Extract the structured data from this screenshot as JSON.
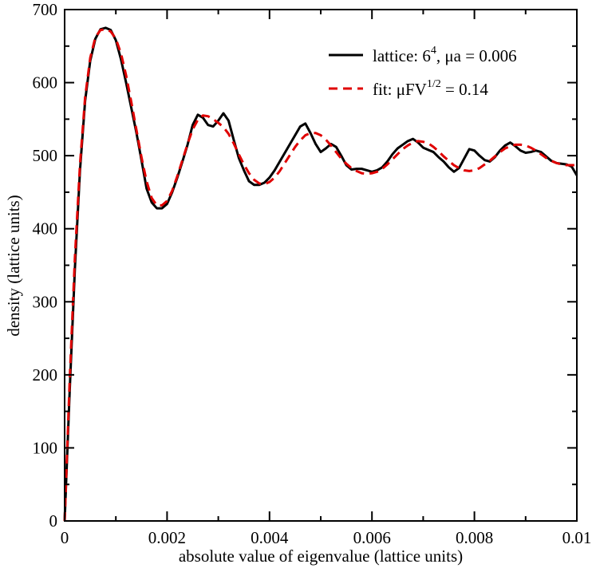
{
  "chart_data": {
    "type": "line",
    "xlabel": "absolute value of eigenvalue (lattice units)",
    "ylabel": "density (lattice units)",
    "xlim": [
      0,
      0.01
    ],
    "ylim": [
      0,
      700
    ],
    "x_ticks": [
      0,
      0.002,
      0.004,
      0.006,
      0.008,
      0.01
    ],
    "x_tick_labels": [
      "0",
      "0.002",
      "0.004",
      "0.006",
      "0.008",
      "0.01"
    ],
    "y_ticks": [
      0,
      100,
      200,
      300,
      400,
      500,
      600,
      700
    ],
    "y_tick_labels": [
      "0",
      "100",
      "200",
      "300",
      "400",
      "500",
      "600",
      "700"
    ],
    "grid": false,
    "legend_position": "top-right",
    "legend": [
      {
        "base": "lattice: 6",
        "sup": "4",
        "tail": ", μa = 0.006"
      },
      {
        "base": "fit: μFV",
        "sup": "1/2",
        "tail": " = 0.14"
      }
    ],
    "series": [
      {
        "color": "#000000",
        "style": "solid",
        "x": [
          0,
          0.0001,
          0.0002,
          0.0003,
          0.0004,
          0.0005,
          0.0006,
          0.0007,
          0.0008,
          0.0009,
          0.001,
          0.0011,
          0.0012,
          0.0013,
          0.0014,
          0.0015,
          0.0016,
          0.0017,
          0.0018,
          0.0019,
          0.002,
          0.0021,
          0.0022,
          0.0023,
          0.0024,
          0.0025,
          0.0026,
          0.0027,
          0.0028,
          0.0029,
          0.003,
          0.0031,
          0.0032,
          0.0033,
          0.0034,
          0.0035,
          0.0036,
          0.0037,
          0.0038,
          0.0039,
          0.004,
          0.0041,
          0.0042,
          0.0043,
          0.0044,
          0.0045,
          0.0046,
          0.0047,
          0.0048,
          0.0049,
          0.005,
          0.0051,
          0.0052,
          0.0053,
          0.0054,
          0.0055,
          0.0056,
          0.0057,
          0.0058,
          0.0059,
          0.006,
          0.0061,
          0.0062,
          0.0063,
          0.0064,
          0.0065,
          0.0066,
          0.0067,
          0.0068,
          0.0069,
          0.007,
          0.0071,
          0.0072,
          0.0073,
          0.0074,
          0.0075,
          0.0076,
          0.0077,
          0.0078,
          0.0079,
          0.008,
          0.0081,
          0.0082,
          0.0083,
          0.0084,
          0.0085,
          0.0086,
          0.0087,
          0.0088,
          0.0089,
          0.009,
          0.0091,
          0.0092,
          0.0093,
          0.0094,
          0.0095,
          0.0096,
          0.0097,
          0.0098,
          0.0099,
          0.01
        ],
        "y": [
          0,
          180,
          345,
          480,
          575,
          630,
          660,
          673,
          675,
          672,
          658,
          632,
          600,
          566,
          532,
          494,
          455,
          436,
          428,
          428,
          434,
          450,
          470,
          492,
          515,
          542,
          556,
          552,
          542,
          540,
          548,
          558,
          548,
          522,
          497,
          480,
          465,
          460,
          460,
          463,
          470,
          480,
          492,
          504,
          516,
          528,
          540,
          544,
          531,
          516,
          505,
          510,
          516,
          512,
          500,
          487,
          481,
          482,
          482,
          480,
          478,
          480,
          484,
          492,
          502,
          510,
          515,
          520,
          523,
          518,
          511,
          508,
          505,
          498,
          492,
          484,
          478,
          483,
          496,
          509,
          507,
          500,
          494,
          492,
          498,
          507,
          514,
          518,
          513,
          507,
          504,
          505,
          507,
          505,
          499,
          493,
          490,
          489,
          488,
          485,
          473
        ]
      },
      {
        "color": "#e00000",
        "style": "dashed",
        "x": [
          0,
          0.0001,
          0.0002,
          0.0003,
          0.0004,
          0.0005,
          0.0006,
          0.0007,
          0.0008,
          0.0009,
          0.001,
          0.0011,
          0.0012,
          0.0013,
          0.0014,
          0.0015,
          0.0016,
          0.0017,
          0.0018,
          0.0019,
          0.002,
          0.0021,
          0.0022,
          0.0023,
          0.0024,
          0.0025,
          0.0026,
          0.0027,
          0.0028,
          0.0029,
          0.003,
          0.0031,
          0.0032,
          0.0033,
          0.0034,
          0.0035,
          0.0036,
          0.0037,
          0.0038,
          0.0039,
          0.004,
          0.0041,
          0.0042,
          0.0043,
          0.0044,
          0.0045,
          0.0046,
          0.0047,
          0.0048,
          0.0049,
          0.005,
          0.0051,
          0.0052,
          0.0053,
          0.0054,
          0.0055,
          0.0056,
          0.0057,
          0.0058,
          0.0059,
          0.006,
          0.0061,
          0.0062,
          0.0063,
          0.0064,
          0.0065,
          0.0066,
          0.0067,
          0.0068,
          0.0069,
          0.007,
          0.0071,
          0.0072,
          0.0073,
          0.0074,
          0.0075,
          0.0076,
          0.0077,
          0.0078,
          0.0079,
          0.008,
          0.0081,
          0.0082,
          0.0083,
          0.0084,
          0.0085,
          0.0086,
          0.0087,
          0.0088,
          0.0089,
          0.009,
          0.0091,
          0.0092,
          0.0093,
          0.0094,
          0.0095,
          0.0096,
          0.0097,
          0.0098,
          0.0099,
          0.01
        ],
        "y": [
          0,
          195,
          360,
          488,
          580,
          634,
          662,
          672,
          673,
          670,
          660,
          640,
          610,
          574,
          536,
          498,
          465,
          442,
          432,
          432,
          438,
          452,
          472,
          494,
          516,
          536,
          549,
          555,
          554,
          550,
          545,
          539,
          530,
          517,
          502,
          488,
          476,
          467,
          462,
          461,
          464,
          470,
          479,
          490,
          501,
          512,
          521,
          528,
          531,
          531,
          528,
          522,
          514,
          505,
          496,
          489,
          483,
          479,
          476,
          475,
          476,
          478,
          482,
          488,
          495,
          502,
          509,
          514,
          518,
          520,
          519,
          517,
          512,
          506,
          499,
          493,
          487,
          483,
          480,
          479,
          480,
          483,
          488,
          493,
          499,
          505,
          510,
          513,
          515,
          515,
          514,
          511,
          507,
          502,
          497,
          493,
          490,
          488,
          487,
          487,
          487
        ]
      }
    ]
  }
}
